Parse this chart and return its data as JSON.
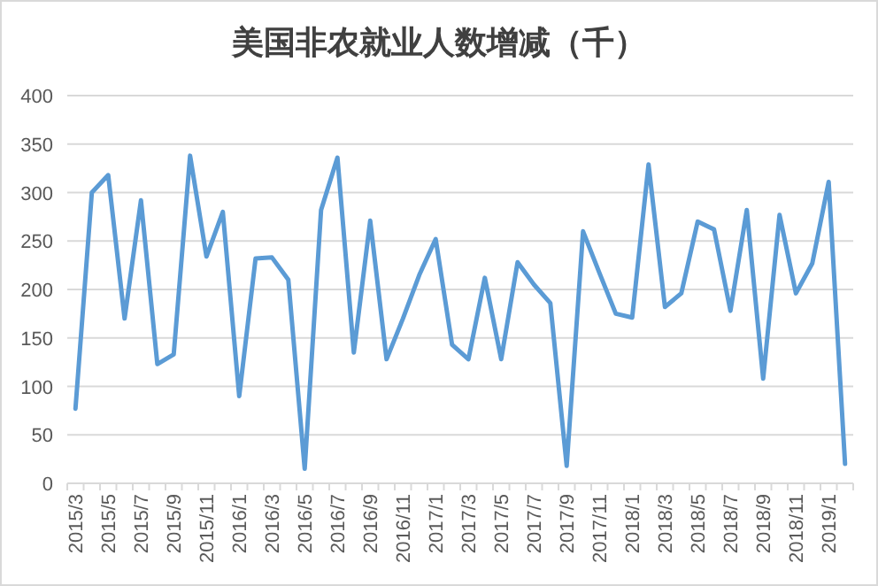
{
  "chart_data": {
    "type": "line",
    "title": "美国非农就业人数增减（千）",
    "categories": [
      "2015/3",
      null,
      "2015/5",
      null,
      "2015/7",
      null,
      "2015/9",
      null,
      "2015/11",
      null,
      "2016/1",
      null,
      "2016/3",
      null,
      "2016/5",
      null,
      "2016/7",
      null,
      "2016/9",
      null,
      "2016/11",
      null,
      "2017/1",
      null,
      "2017/3",
      null,
      "2017/5",
      null,
      "2017/7",
      null,
      "2017/9",
      null,
      "2017/11",
      null,
      "2018/1",
      null,
      "2018/3",
      null,
      "2018/5",
      null,
      "2018/7",
      null,
      "2018/9",
      null,
      "2018/11",
      null,
      "2019/1",
      null
    ],
    "series": [
      {
        "color": "#5b9bd5",
        "values": [
          77,
          300,
          318,
          170,
          292,
          123,
          133,
          338,
          234,
          280,
          90,
          232,
          233,
          210,
          15,
          282,
          336,
          135,
          271,
          128,
          170,
          215,
          252,
          143,
          128,
          212,
          128,
          228,
          205,
          186,
          18,
          260,
          217,
          175,
          171,
          329,
          182,
          196,
          270,
          262,
          178,
          282,
          108,
          277,
          196,
          227,
          311,
          20
        ]
      }
    ],
    "ylim": [
      0,
      400
    ],
    "yticks": [
      0,
      50,
      100,
      150,
      200,
      250,
      300,
      350,
      400
    ],
    "grid": "y",
    "marker": "none",
    "line_style": "solid"
  }
}
